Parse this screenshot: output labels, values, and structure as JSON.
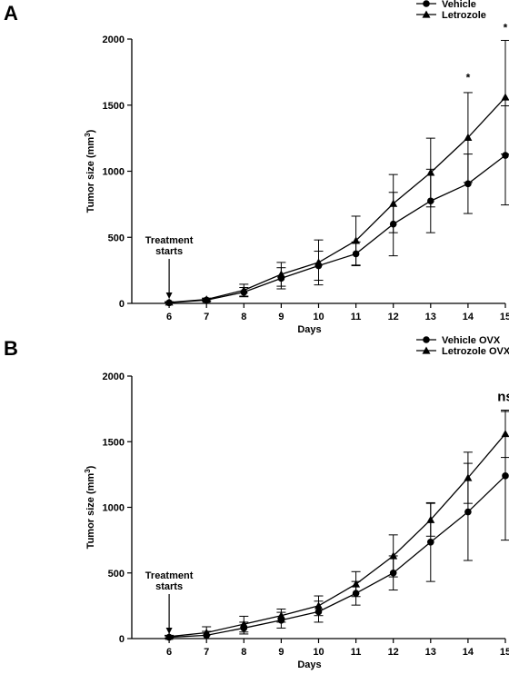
{
  "chart_data": [
    {
      "panel_label": "A",
      "type": "line",
      "x": [
        6,
        7,
        8,
        9,
        10,
        11,
        12,
        13,
        14,
        15
      ],
      "xlabel": "Days",
      "ylabel": "Tumor size (mm",
      "ylabel_sup": "3",
      "ylabel_end": ")",
      "ylim": [
        0,
        2000
      ],
      "yticks": [
        0,
        500,
        1000,
        1500,
        2000
      ],
      "legend_position": "top-right",
      "grid": false,
      "annotation": {
        "line1": "Treatment",
        "line2": "starts",
        "x": 6
      },
      "significance": [
        {
          "x": 14,
          "y": 1680,
          "label": "*"
        },
        {
          "x": 15,
          "y": 2060,
          "label": "*"
        }
      ],
      "series": [
        {
          "name": "Vehicle",
          "marker": "circle",
          "values": [
            5,
            25,
            85,
            190,
            285,
            375,
            600,
            775,
            905,
            1120
          ],
          "errors": [
            5,
            10,
            35,
            80,
            110,
            90,
            240,
            240,
            225,
            375
          ]
        },
        {
          "name": "Letrozole",
          "marker": "triangle",
          "values": [
            8,
            30,
            100,
            220,
            310,
            475,
            755,
            990,
            1255,
            1560
          ],
          "errors": [
            5,
            10,
            45,
            90,
            170,
            185,
            220,
            260,
            340,
            430
          ]
        }
      ]
    },
    {
      "panel_label": "B",
      "type": "line",
      "x": [
        6,
        7,
        8,
        9,
        10,
        11,
        12,
        13,
        14,
        15
      ],
      "xlabel": "Days",
      "ylabel": "Tumor size (mm",
      "ylabel_sup": "3",
      "ylabel_end": ")",
      "ylim": [
        0,
        2000
      ],
      "yticks": [
        0,
        500,
        1000,
        1500,
        2000
      ],
      "legend_position": "top-right",
      "grid": false,
      "annotation": {
        "line1": "Treatment",
        "line2": "starts",
        "x": 6
      },
      "significance": [
        {
          "x": 15,
          "y": 1810,
          "label": "ns"
        }
      ],
      "series": [
        {
          "name": "Vehicle OVX",
          "marker": "circle",
          "values": [
            10,
            25,
            80,
            140,
            205,
            345,
            500,
            735,
            965,
            1240
          ],
          "errors": [
            10,
            30,
            45,
            60,
            80,
            90,
            130,
            300,
            370,
            490
          ]
        },
        {
          "name": "Letrozole OVX",
          "marker": "triangle",
          "values": [
            15,
            45,
            110,
            175,
            250,
            415,
            630,
            905,
            1225,
            1560
          ],
          "errors": [
            10,
            45,
            60,
            50,
            75,
            95,
            160,
            125,
            195,
            180
          ]
        }
      ]
    }
  ]
}
